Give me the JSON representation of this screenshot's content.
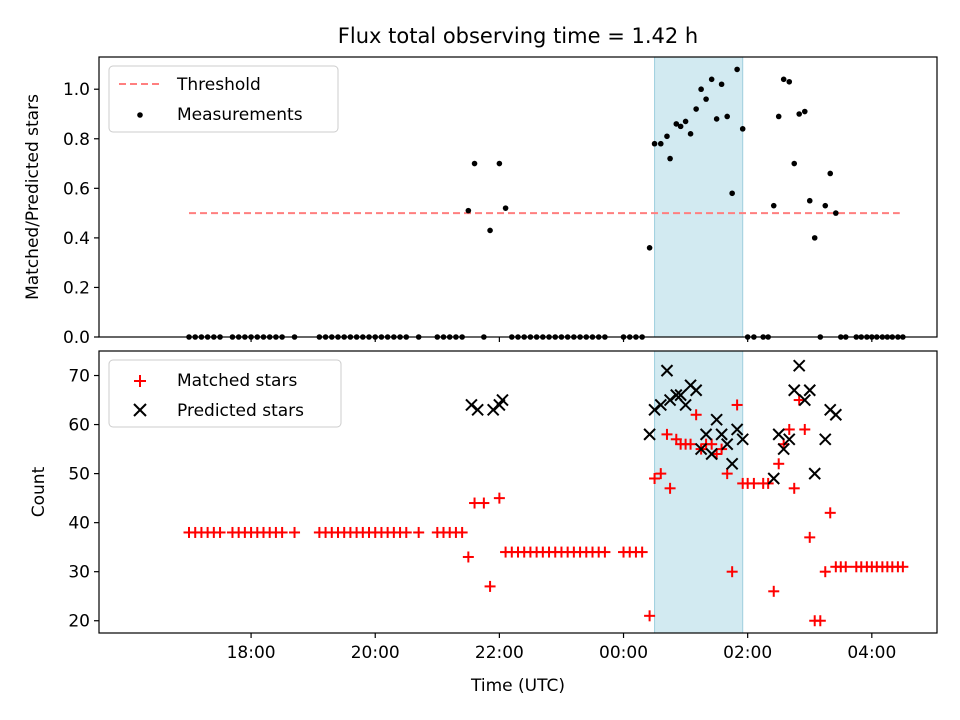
{
  "chart_data": [
    {
      "type": "scatter",
      "title": "Flux total observing time = 1.42 h",
      "ylabel": "Matched/Predicted stars",
      "ylim": [
        0,
        1.13
      ],
      "xlim_hours": [
        15.55,
        29.05
      ],
      "x_ticks": [
        18,
        20,
        22,
        24,
        26,
        28
      ],
      "y_ticks": [
        0.0,
        0.2,
        0.4,
        0.6,
        0.8,
        1.0
      ],
      "y_tick_labels": [
        "0.0",
        "0.2",
        "0.4",
        "0.6",
        "0.8",
        "1.0"
      ],
      "legend": {
        "placement": "top-left",
        "entries": [
          "Threshold",
          "Measurements"
        ]
      },
      "threshold": {
        "name": "Threshold",
        "value": 0.5,
        "x_range": [
          17.0,
          28.45
        ],
        "color": "#ff7f7f",
        "style": "dashed"
      },
      "highlight_span_hours": [
        24.5,
        25.92
      ],
      "highlight_color": "#add8e6",
      "series": [
        {
          "name": "Measurements",
          "color": "#000000",
          "marker": "dot",
          "x": [
            17.0,
            17.1,
            17.2,
            17.3,
            17.4,
            17.5,
            17.7,
            17.8,
            17.9,
            18.0,
            18.1,
            18.2,
            18.3,
            18.4,
            18.5,
            18.7,
            19.1,
            19.2,
            19.3,
            19.4,
            19.5,
            19.6,
            19.7,
            19.8,
            19.9,
            20.0,
            20.1,
            20.2,
            20.3,
            20.4,
            20.5,
            20.7,
            21.0,
            21.1,
            21.2,
            21.3,
            21.4,
            21.5,
            21.6,
            21.75,
            21.85,
            22.0,
            22.1,
            22.2,
            22.3,
            22.4,
            22.5,
            22.6,
            22.7,
            22.8,
            22.9,
            23.0,
            23.1,
            23.2,
            23.3,
            23.4,
            23.5,
            23.6,
            23.7,
            24.0,
            24.1,
            24.2,
            24.3,
            24.42,
            24.5,
            24.6,
            24.7,
            24.75,
            24.85,
            24.92,
            25.0,
            25.08,
            25.17,
            25.25,
            25.33,
            25.42,
            25.5,
            25.58,
            25.67,
            25.75,
            25.83,
            25.92,
            26.0,
            26.1,
            26.25,
            26.33,
            26.42,
            26.5,
            26.58,
            26.67,
            26.75,
            26.83,
            26.92,
            27.0,
            27.08,
            27.17,
            27.25,
            27.33,
            27.42,
            27.5,
            27.58,
            27.75,
            27.83,
            27.92,
            28.0,
            28.08,
            28.17,
            28.25,
            28.33,
            28.42,
            28.5
          ],
          "y": [
            0,
            0,
            0,
            0,
            0,
            0,
            0,
            0,
            0,
            0,
            0,
            0,
            0,
            0,
            0,
            0,
            0,
            0,
            0,
            0,
            0,
            0,
            0,
            0,
            0,
            0,
            0,
            0,
            0,
            0,
            0,
            0,
            0,
            0,
            0,
            0,
            0,
            0.51,
            0.7,
            0,
            0.43,
            0.7,
            0.52,
            0,
            0,
            0,
            0,
            0,
            0,
            0,
            0,
            0,
            0,
            0,
            0,
            0,
            0,
            0,
            0,
            0,
            0,
            0,
            0,
            0.36,
            0.78,
            0.78,
            0.81,
            0.72,
            0.86,
            0.85,
            0.87,
            0.82,
            0.92,
            1.0,
            0.96,
            1.04,
            0.88,
            1.02,
            0.89,
            0.58,
            1.08,
            0.84,
            0,
            0,
            0,
            0,
            0.53,
            0.89,
            1.04,
            1.03,
            0.7,
            0.9,
            0.91,
            0.55,
            0.4,
            0,
            0.53,
            0.66,
            0.5,
            0,
            0,
            0,
            0,
            0,
            0,
            0,
            0,
            0,
            0,
            0,
            0
          ]
        }
      ]
    },
    {
      "type": "scatter",
      "xlabel": "Time (UTC)",
      "ylabel": "Count",
      "ylim": [
        17.5,
        75
      ],
      "xlim_hours": [
        15.55,
        29.05
      ],
      "x_ticks": [
        18,
        20,
        22,
        24,
        26,
        28
      ],
      "x_tick_labels": [
        "18:00",
        "20:00",
        "22:00",
        "00:00",
        "02:00",
        "04:00"
      ],
      "y_ticks": [
        20,
        30,
        40,
        50,
        60,
        70
      ],
      "y_tick_labels": [
        "20",
        "30",
        "40",
        "50",
        "60",
        "70"
      ],
      "legend": {
        "placement": "top-left",
        "entries": [
          "Matched stars",
          "Predicted stars"
        ]
      },
      "highlight_span_hours": [
        24.5,
        25.92
      ],
      "highlight_color": "#add8e6",
      "series": [
        {
          "name": "Matched stars",
          "color": "#ff0000",
          "marker": "plus",
          "x": [
            17.0,
            17.1,
            17.2,
            17.3,
            17.4,
            17.5,
            17.7,
            17.8,
            17.9,
            18.0,
            18.1,
            18.2,
            18.3,
            18.4,
            18.5,
            18.7,
            19.1,
            19.2,
            19.3,
            19.4,
            19.5,
            19.6,
            19.7,
            19.8,
            19.9,
            20.0,
            20.1,
            20.2,
            20.3,
            20.4,
            20.5,
            20.7,
            21.0,
            21.1,
            21.2,
            21.3,
            21.4,
            21.5,
            21.6,
            21.75,
            21.85,
            22.0,
            22.1,
            22.2,
            22.3,
            22.4,
            22.5,
            22.6,
            22.7,
            22.8,
            22.9,
            23.0,
            23.1,
            23.2,
            23.3,
            23.4,
            23.5,
            23.6,
            23.7,
            24.0,
            24.1,
            24.2,
            24.3,
            24.42,
            24.5,
            24.6,
            24.7,
            24.75,
            24.85,
            24.92,
            25.0,
            25.08,
            25.17,
            25.25,
            25.33,
            25.42,
            25.5,
            25.58,
            25.67,
            25.75,
            25.83,
            25.92,
            26.0,
            26.1,
            26.25,
            26.33,
            26.42,
            26.5,
            26.58,
            26.67,
            26.75,
            26.83,
            26.92,
            27.0,
            27.08,
            27.17,
            27.25,
            27.33,
            27.42,
            27.5,
            27.58,
            27.75,
            27.83,
            27.92,
            28.0,
            28.08,
            28.17,
            28.25,
            28.33,
            28.42,
            28.5
          ],
          "y": [
            38,
            38,
            38,
            38,
            38,
            38,
            38,
            38,
            38,
            38,
            38,
            38,
            38,
            38,
            38,
            38,
            38,
            38,
            38,
            38,
            38,
            38,
            38,
            38,
            38,
            38,
            38,
            38,
            38,
            38,
            38,
            38,
            38,
            38,
            38,
            38,
            38,
            33,
            44,
            44,
            27,
            45,
            34,
            34,
            34,
            34,
            34,
            34,
            34,
            34,
            34,
            34,
            34,
            34,
            34,
            34,
            34,
            34,
            34,
            34,
            34,
            34,
            34,
            21,
            49,
            50,
            58,
            47,
            57,
            56,
            56,
            56,
            62,
            55,
            56,
            56,
            54,
            55,
            50,
            30,
            64,
            48,
            48,
            48,
            48,
            48,
            26,
            52,
            56,
            59,
            47,
            65,
            59,
            37,
            20,
            20,
            30,
            42,
            31,
            31,
            31,
            31,
            31,
            31,
            31,
            31,
            31,
            31,
            31,
            31,
            31
          ]
        },
        {
          "name": "Predicted stars",
          "color": "#000000",
          "marker": "x",
          "x": [
            21.55,
            21.65,
            21.9,
            22.0,
            22.05,
            24.42,
            24.5,
            24.6,
            24.7,
            24.75,
            24.85,
            24.92,
            25.0,
            25.08,
            25.17,
            25.25,
            25.33,
            25.42,
            25.5,
            25.58,
            25.67,
            25.75,
            25.83,
            25.92,
            26.42,
            26.5,
            26.58,
            26.67,
            26.75,
            26.83,
            26.92,
            27.0,
            27.08,
            27.25,
            27.33,
            27.42
          ],
          "y": [
            64,
            63,
            63,
            64,
            65,
            58,
            63,
            64,
            71,
            65,
            66,
            66,
            64,
            68,
            67,
            55,
            58,
            54,
            61,
            58,
            56,
            52,
            59,
            57,
            49,
            58,
            55,
            57,
            67,
            72,
            65,
            67,
            50,
            57,
            63,
            62
          ]
        }
      ]
    }
  ]
}
